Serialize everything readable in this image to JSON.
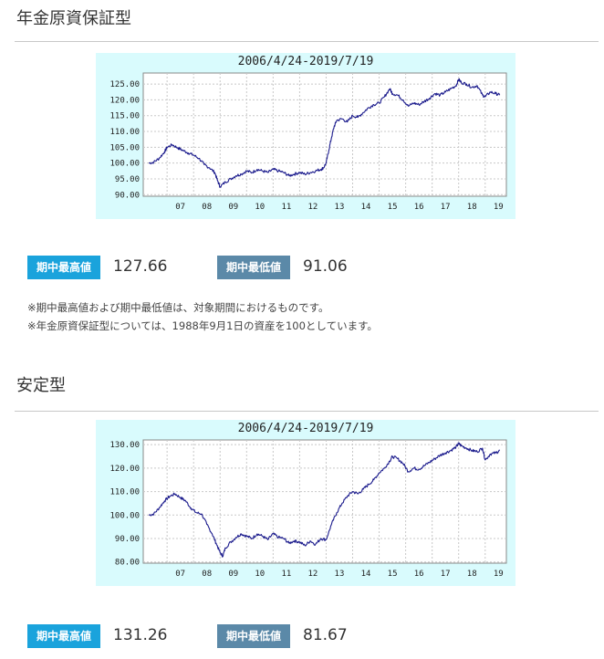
{
  "sections": [
    {
      "title": "年金原資保証型",
      "max_label": "期中最高値",
      "max_value": "127.66",
      "min_label": "期中最低値",
      "min_value": "91.06",
      "notes": [
        "※期中最高値および期中最低値は、対象期間におけるものです。",
        "※年金原資保証型については、1988年9月1日の資産を100としています。"
      ]
    },
    {
      "title": "安定型",
      "max_label": "期中最高値",
      "max_value": "131.26",
      "min_label": "期中最低値",
      "min_value": "81.67",
      "notes": []
    }
  ],
  "colors": {
    "chart_background": "#d9fbfd",
    "plot_background": "#ffffff",
    "line": "#1a1a8c",
    "badge_high": "#1aa3dc",
    "badge_low": "#5b89a8"
  },
  "chart_data": [
    {
      "type": "line",
      "title": "2006/4/24-2019/7/19",
      "xlabel": "",
      "ylabel": "",
      "x_ticks": [
        "07",
        "08",
        "09",
        "10",
        "11",
        "12",
        "13",
        "14",
        "15",
        "16",
        "17",
        "18",
        "19"
      ],
      "y_ticks": [
        "90.00",
        "95.00",
        "100.00",
        "105.00",
        "110.00",
        "115.00",
        "120.00",
        "125.00"
      ],
      "ylim": [
        89.5,
        128.5
      ],
      "grid": true,
      "series": [
        {
          "x": [
            2006.31,
            2006.5,
            2006.7,
            2006.9,
            2007.0,
            2007.2,
            2007.4,
            2007.6,
            2007.8,
            2008.0,
            2008.2,
            2008.4,
            2008.6,
            2008.8,
            2008.9,
            2009.0,
            2009.2,
            2009.4,
            2009.6,
            2009.8,
            2010.0,
            2010.2,
            2010.4,
            2010.6,
            2010.8,
            2011.0,
            2011.2,
            2011.4,
            2011.6,
            2011.8,
            2012.0,
            2012.2,
            2012.4,
            2012.6,
            2012.8,
            2012.9,
            2013.0,
            2013.1,
            2013.2,
            2013.3,
            2013.4,
            2013.6,
            2013.8,
            2014.0,
            2014.2,
            2014.4,
            2014.6,
            2014.8,
            2015.0,
            2015.2,
            2015.4,
            2015.5,
            2015.7,
            2015.9,
            2016.1,
            2016.3,
            2016.5,
            2016.7,
            2016.9,
            2017.1,
            2017.3,
            2017.5,
            2017.7,
            2017.9,
            2018.0,
            2018.1,
            2018.3,
            2018.5,
            2018.7,
            2018.9,
            2019.0,
            2019.2,
            2019.4,
            2019.55
          ],
          "values": [
            100.0,
            100.3,
            101.5,
            103.5,
            105.0,
            105.8,
            104.8,
            104.0,
            103.2,
            102.5,
            101.5,
            99.5,
            98.5,
            97.0,
            94.5,
            92.5,
            94.0,
            95.0,
            96.0,
            96.5,
            97.5,
            97.0,
            98.0,
            97.5,
            97.0,
            98.0,
            97.5,
            97.0,
            96.0,
            96.5,
            97.0,
            96.5,
            97.0,
            97.5,
            98.0,
            98.5,
            100.0,
            104.0,
            108.0,
            111.5,
            113.5,
            114.0,
            113.0,
            115.0,
            114.5,
            116.0,
            117.5,
            118.5,
            119.0,
            121.0,
            123.5,
            122.0,
            121.5,
            120.0,
            118.0,
            119.0,
            118.5,
            119.5,
            120.5,
            122.0,
            121.5,
            122.5,
            123.5,
            124.5,
            126.5,
            125.5,
            125.0,
            124.0,
            124.5,
            121.5,
            121.0,
            122.5,
            122.0,
            121.5
          ]
        }
      ]
    },
    {
      "type": "line",
      "title": "2006/4/24-2019/7/19",
      "xlabel": "",
      "ylabel": "",
      "x_ticks": [
        "07",
        "08",
        "09",
        "10",
        "11",
        "12",
        "13",
        "14",
        "15",
        "16",
        "17",
        "18",
        "19"
      ],
      "y_ticks": [
        "80.00",
        "90.00",
        "100.00",
        "110.00",
        "120.00",
        "130.00"
      ],
      "ylim": [
        79.5,
        132.0
      ],
      "grid": true,
      "series": [
        {
          "x": [
            2006.31,
            2006.5,
            2006.7,
            2006.9,
            2007.1,
            2007.3,
            2007.5,
            2007.7,
            2007.9,
            2008.1,
            2008.3,
            2008.5,
            2008.7,
            2008.85,
            2009.0,
            2009.1,
            2009.2,
            2009.4,
            2009.6,
            2009.8,
            2010.0,
            2010.2,
            2010.4,
            2010.6,
            2010.8,
            2011.0,
            2011.2,
            2011.4,
            2011.6,
            2011.8,
            2012.0,
            2012.2,
            2012.4,
            2012.6,
            2012.8,
            2013.0,
            2013.2,
            2013.4,
            2013.6,
            2013.8,
            2014.0,
            2014.2,
            2014.4,
            2014.6,
            2014.8,
            2015.0,
            2015.2,
            2015.4,
            2015.5,
            2015.7,
            2015.9,
            2016.1,
            2016.3,
            2016.5,
            2016.7,
            2016.9,
            2017.1,
            2017.3,
            2017.5,
            2017.7,
            2017.9,
            2018.0,
            2018.1,
            2018.3,
            2018.5,
            2018.7,
            2018.9,
            2019.0,
            2019.2,
            2019.4,
            2019.55
          ],
          "values": [
            100.0,
            100.5,
            103.0,
            106.0,
            108.0,
            109.0,
            107.5,
            106.0,
            103.0,
            101.0,
            100.5,
            96.0,
            92.0,
            88.0,
            84.0,
            82.5,
            86.0,
            88.5,
            90.5,
            92.0,
            91.0,
            90.0,
            92.0,
            91.0,
            89.5,
            92.0,
            90.5,
            90.0,
            88.0,
            89.0,
            88.5,
            87.0,
            89.0,
            87.5,
            90.0,
            89.5,
            96.0,
            101.0,
            105.0,
            108.0,
            110.0,
            109.0,
            111.0,
            113.0,
            115.0,
            118.0,
            120.0,
            123.0,
            125.0,
            124.0,
            122.0,
            118.5,
            120.0,
            119.5,
            121.0,
            122.5,
            124.0,
            125.5,
            126.5,
            127.5,
            129.0,
            130.5,
            129.5,
            128.5,
            127.5,
            127.0,
            128.5,
            123.5,
            126.0,
            126.5,
            127.5
          ]
        }
      ]
    }
  ]
}
